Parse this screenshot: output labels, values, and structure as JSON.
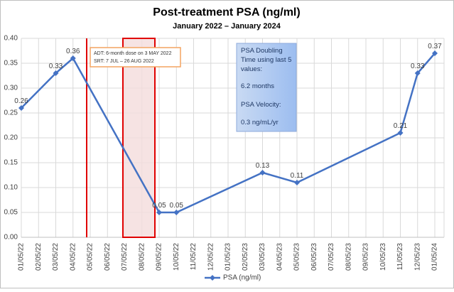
{
  "chart_data": {
    "type": "line",
    "title": "Post-treatment PSA (ng/ml)",
    "subtitle": "January 2022 – January 2024",
    "categories": [
      "01/05/22",
      "02/05/22",
      "03/05/22",
      "04/05/22",
      "05/05/22",
      "06/05/22",
      "07/05/22",
      "08/05/22",
      "09/05/22",
      "10/05/22",
      "11/05/22",
      "12/05/22",
      "01/05/23",
      "02/05/23",
      "03/05/23",
      "04/05/23",
      "05/05/23",
      "06/05/23",
      "07/05/23",
      "08/05/23",
      "09/05/23",
      "10/05/23",
      "11/05/23",
      "12/05/23",
      "01/05/24"
    ],
    "series": [
      {
        "name": "PSA (ng/ml)",
        "color": "#4472c4",
        "x": [
          "01/05/22",
          "03/05/22",
          "04/05/22",
          "09/05/22",
          "10/05/22",
          "03/05/23",
          "05/05/23",
          "11/05/23",
          "12/05/23",
          "01/05/24"
        ],
        "values": [
          0.26,
          0.33,
          0.36,
          0.05,
          0.05,
          0.13,
          0.11,
          0.21,
          0.33,
          0.37
        ]
      }
    ],
    "ylim": [
      0,
      0.4
    ],
    "yticks": [
      {
        "value": 0,
        "label": "0.00"
      },
      0.05,
      {
        "value": 0.1,
        "label": "0.10"
      },
      0.15,
      {
        "value": 0.2,
        "label": "0.20"
      },
      0.25,
      {
        "value": 0.3,
        "label": "0.30"
      },
      0.35,
      {
        "value": 0.4,
        "label": "0.40"
      }
    ],
    "grid": true,
    "legend": "bottom",
    "annotations": {
      "treatment": [
        "ADT: 6-month dose on 3 MAY 2022",
        "SRT: 7 JUL – 26 AUG 2022"
      ],
      "stats": [
        "PSA Doubling",
        "Time using last 5",
        "values:",
        "6.2 months",
        "PSA Velocity:",
        "0.3 ng/mL/yr"
      ]
    }
  }
}
